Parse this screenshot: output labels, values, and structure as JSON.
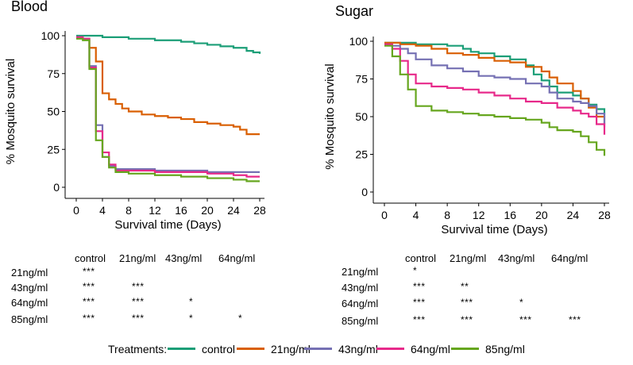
{
  "colors": {
    "control": "#1b9e77",
    "21ng/ml": "#d95f02",
    "43ng/ml": "#7570b3",
    "64ng/ml": "#e7298a",
    "85ng/ml": "#66a61e"
  },
  "chart_data": [
    {
      "type": "line",
      "title": "Blood",
      "xlabel": "Survival time (Days)",
      "ylabel": "% Mosquito survival",
      "xlim": [
        0,
        28
      ],
      "ylim": [
        0,
        100
      ],
      "xticks": [
        "0",
        "4",
        "8",
        "12",
        "16",
        "20",
        "24",
        "28"
      ],
      "yticks": [
        "0",
        "25",
        "50",
        "75",
        "100"
      ],
      "grid": false,
      "step": true,
      "series": [
        {
          "name": "control",
          "x": [
            0,
            2,
            4,
            8,
            12,
            16,
            18,
            20,
            22,
            24,
            26,
            27,
            28
          ],
          "y": [
            100,
            100,
            99,
            98,
            97,
            96,
            95,
            94,
            93,
            92,
            90,
            89,
            88
          ]
        },
        {
          "name": "21ng/ml",
          "x": [
            0,
            1,
            2,
            3,
            4,
            5,
            6,
            7,
            8,
            10,
            12,
            14,
            16,
            18,
            20,
            22,
            24,
            25,
            26,
            28
          ],
          "y": [
            99,
            98,
            92,
            83,
            62,
            58,
            55,
            52,
            50,
            48,
            47,
            46,
            45,
            43,
            42,
            41,
            40,
            38,
            35,
            35
          ]
        },
        {
          "name": "43ng/ml",
          "x": [
            0,
            1,
            2,
            3,
            4,
            5,
            6,
            8,
            12,
            16,
            20,
            24,
            28
          ],
          "y": [
            99,
            98,
            80,
            41,
            20,
            14,
            12,
            12,
            11,
            11,
            10,
            10,
            10
          ]
        },
        {
          "name": "64ng/ml",
          "x": [
            0,
            1,
            2,
            3,
            4,
            5,
            6,
            8,
            12,
            16,
            20,
            24,
            26,
            28
          ],
          "y": [
            99,
            98,
            79,
            37,
            23,
            15,
            11,
            11,
            10,
            10,
            9,
            8,
            7,
            7
          ]
        },
        {
          "name": "85ng/ml",
          "x": [
            0,
            1,
            2,
            3,
            4,
            5,
            6,
            8,
            12,
            16,
            20,
            24,
            26,
            27,
            28
          ],
          "y": [
            98,
            97,
            78,
            31,
            20,
            13,
            10,
            9,
            8,
            7,
            6,
            5,
            4,
            4,
            4
          ]
        }
      ]
    },
    {
      "type": "line",
      "title": "Sugar",
      "xlabel": "Survival time (Days)",
      "ylabel": "% Mosquito survival",
      "xlim": [
        0,
        28
      ],
      "ylim": [
        0,
        100
      ],
      "xticks": [
        "0",
        "4",
        "8",
        "12",
        "16",
        "20",
        "24",
        "28"
      ],
      "yticks": [
        "0",
        "25",
        "50",
        "75",
        "100"
      ],
      "grid": false,
      "step": true,
      "series": [
        {
          "name": "control",
          "x": [
            0,
            1,
            2,
            4,
            6,
            8,
            10,
            11,
            12,
            14,
            16,
            18,
            19,
            20,
            21,
            22,
            24,
            25,
            26,
            27,
            28
          ],
          "y": [
            99,
            99,
            99,
            98,
            98,
            97,
            95,
            93,
            92,
            90,
            88,
            84,
            78,
            74,
            70,
            66,
            64,
            62,
            58,
            55,
            51
          ]
        },
        {
          "name": "21ng/ml",
          "x": [
            0,
            1,
            2,
            4,
            6,
            8,
            10,
            12,
            14,
            16,
            18,
            20,
            21,
            22,
            24,
            25,
            26,
            27,
            28
          ],
          "y": [
            99,
            99,
            98,
            97,
            95,
            92,
            91,
            89,
            87,
            86,
            83,
            80,
            76,
            72,
            67,
            62,
            56,
            50,
            45
          ]
        },
        {
          "name": "43ng/ml",
          "x": [
            0,
            1,
            2,
            3,
            4,
            6,
            8,
            10,
            12,
            14,
            16,
            18,
            20,
            21,
            22,
            24,
            25,
            26,
            27,
            28
          ],
          "y": [
            98,
            97,
            95,
            92,
            88,
            84,
            82,
            80,
            77,
            76,
            75,
            72,
            70,
            66,
            62,
            60,
            59,
            57,
            52,
            43
          ]
        },
        {
          "name": "64ng/ml",
          "x": [
            0,
            1,
            2,
            3,
            4,
            6,
            8,
            10,
            12,
            14,
            16,
            18,
            20,
            22,
            24,
            25,
            26,
            27,
            28
          ],
          "y": [
            98,
            95,
            87,
            78,
            72,
            70,
            69,
            68,
            66,
            64,
            62,
            60,
            59,
            56,
            54,
            52,
            50,
            45,
            38
          ]
        },
        {
          "name": "85ng/ml",
          "x": [
            0,
            1,
            2,
            3,
            4,
            6,
            8,
            10,
            12,
            14,
            16,
            18,
            20,
            21,
            22,
            24,
            25,
            26,
            27,
            28
          ],
          "y": [
            97,
            90,
            78,
            68,
            57,
            54,
            53,
            52,
            51,
            50,
            49,
            48,
            46,
            43,
            41,
            40,
            37,
            33,
            28,
            24
          ]
        }
      ]
    }
  ],
  "stats_blood": {
    "columns": [
      "control",
      "21ng/ml",
      "43ng/ml",
      "64ng/ml"
    ],
    "rows": [
      {
        "label": "21ng/ml",
        "cells": [
          "***",
          "",
          "",
          ""
        ]
      },
      {
        "label": "43ng/ml",
        "cells": [
          "***",
          "***",
          "",
          ""
        ]
      },
      {
        "label": "64ng/ml",
        "cells": [
          "***",
          "***",
          "*",
          ""
        ]
      },
      {
        "label": "85ng/ml",
        "cells": [
          "***",
          "***",
          "*",
          "*"
        ]
      }
    ]
  },
  "stats_sugar": {
    "columns": [
      "control",
      "21ng/ml",
      "43ng/ml",
      "64ng/ml"
    ],
    "rows": [
      {
        "label": "21ng/ml",
        "cells": [
          "*",
          "",
          "",
          ""
        ]
      },
      {
        "label": "43ng/ml",
        "cells": [
          "***",
          "**",
          "",
          ""
        ]
      },
      {
        "label": "64ng/ml",
        "cells": [
          "***",
          "***",
          "*",
          ""
        ]
      },
      {
        "label": "85ng/ml",
        "cells": [
          "***",
          "***",
          "***",
          "***"
        ]
      }
    ]
  },
  "legend": {
    "title": "Treatments:",
    "items": [
      "control",
      "21ng/ml",
      "43ng/ml",
      "64ng/ml",
      "85ng/ml"
    ]
  }
}
